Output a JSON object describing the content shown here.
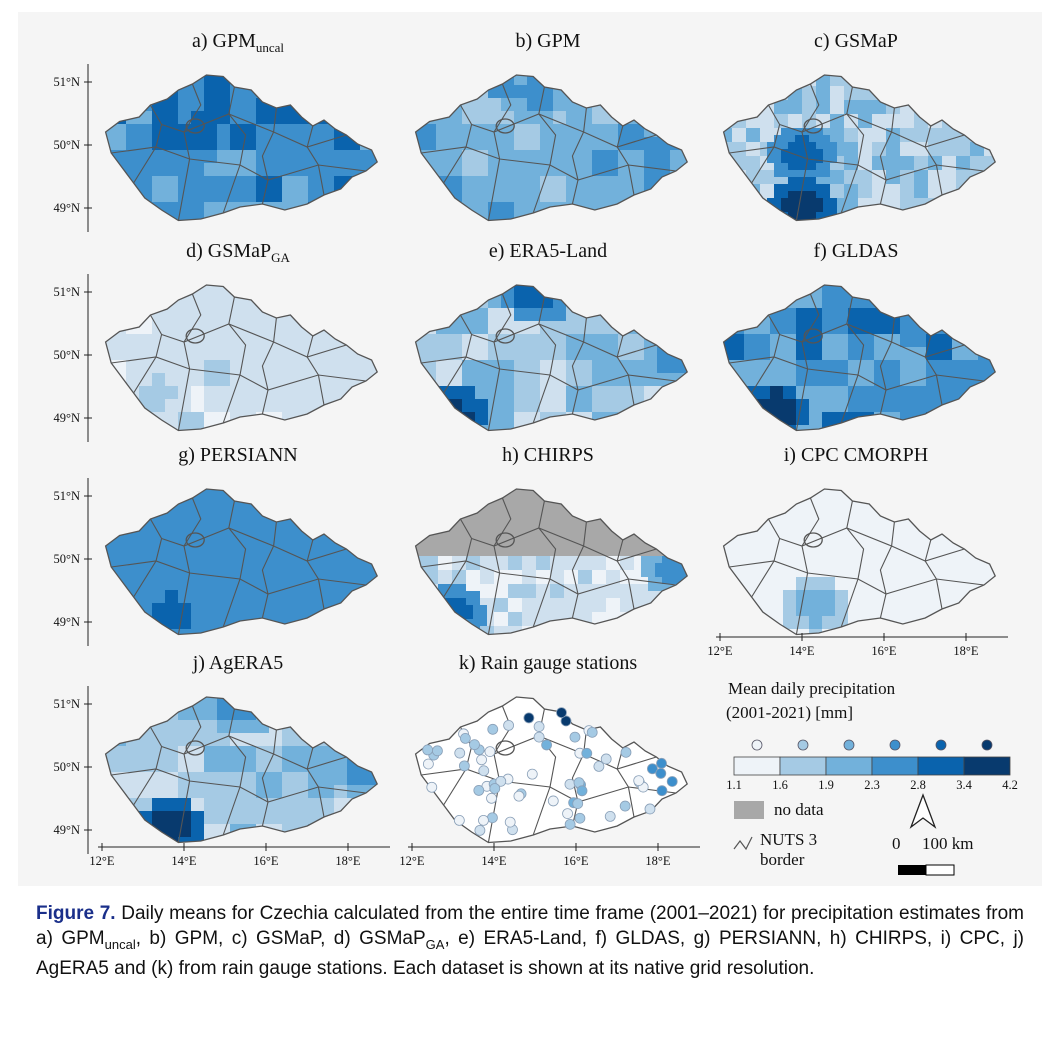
{
  "colors": {
    "bins": [
      "#eef3f8",
      "#cfe0ee",
      "#a5cae4",
      "#72b1db",
      "#3d8fcc",
      "#0a63ad",
      "#083a6e"
    ],
    "nodata": "#a8a8a8",
    "border": "#555555",
    "caption_label": "#1a2f8a"
  },
  "axes": {
    "lat_labels": [
      "51°N",
      "50°N",
      "49°N"
    ],
    "lon_labels": [
      "12°E",
      "14°E",
      "16°E",
      "18°E"
    ]
  },
  "panels": [
    {
      "id": "a",
      "title": "a) GPM",
      "sub": "uncal",
      "base": 4,
      "variance": 0.9,
      "hot": [
        [
          0.22,
          0.1,
          5
        ],
        [
          0.35,
          0.4,
          5
        ]
      ]
    },
    {
      "id": "b",
      "title": "b) GPM",
      "sub": "",
      "base": 3,
      "variance": 0.8,
      "hot": [
        [
          0.45,
          0.12,
          4
        ],
        [
          0.92,
          0.45,
          4
        ]
      ]
    },
    {
      "id": "c",
      "title": "c) GSMaP",
      "sub": "",
      "base": 2,
      "variance": 1.2,
      "hot": [
        [
          0.3,
          0.9,
          6
        ],
        [
          0.3,
          0.55,
          5
        ]
      ]
    },
    {
      "id": "d",
      "title": "d) GSMaP",
      "sub": "GA",
      "base": 1,
      "variance": 0.6,
      "hot": [
        [
          0.2,
          0.75,
          2
        ]
      ]
    },
    {
      "id": "e",
      "title": "e) ERA5-Land",
      "sub": "",
      "base": 2,
      "variance": 1.0,
      "hot": [
        [
          0.15,
          0.9,
          6
        ],
        [
          0.45,
          0.1,
          5
        ],
        [
          0.95,
          0.5,
          4
        ]
      ]
    },
    {
      "id": "f",
      "title": "f) GLDAS",
      "sub": "",
      "base": 4,
      "variance": 0.9,
      "hot": [
        [
          0.2,
          0.85,
          6
        ],
        [
          0.7,
          0.3,
          4
        ]
      ]
    },
    {
      "id": "g",
      "title": "g) PERSIANN",
      "sub": "",
      "base": 4,
      "variance": 0.5,
      "hot": [
        [
          0.25,
          0.85,
          5
        ]
      ]
    },
    {
      "id": "h",
      "title": "h) CHIRPS",
      "sub": "",
      "base": 1,
      "variance": 1.0,
      "hot": [
        [
          0.15,
          0.85,
          5
        ],
        [
          0.95,
          0.55,
          4
        ]
      ],
      "nodata_top": 0.45
    },
    {
      "id": "i",
      "title": "i) CPC CMORPH",
      "sub": "",
      "base": 0,
      "variance": 0.3,
      "hot": [
        [
          0.35,
          0.8,
          3
        ]
      ]
    },
    {
      "id": "j",
      "title": "j) AgERA5",
      "sub": "",
      "base": 2,
      "variance": 0.9,
      "hot": [
        [
          0.25,
          0.9,
          6
        ],
        [
          0.95,
          0.5,
          4
        ],
        [
          0.5,
          0.1,
          4
        ]
      ]
    },
    {
      "id": "k",
      "title": "k) Rain gauge stations",
      "sub": "",
      "stations": true
    }
  ],
  "legend": {
    "title_line1": "Mean daily precipitation",
    "title_line2": "(2001-2021) [mm]",
    "breaks": [
      "1.1",
      "1.6",
      "1.9",
      "2.3",
      "2.8",
      "3.4",
      "4.2"
    ],
    "nodata_label": "no data",
    "border_label_line1": "NUTS 3",
    "border_label_line2": "border",
    "scale_zero": "0",
    "scale_max": "100 km"
  },
  "caption": {
    "label": "Figure 7.",
    "text": "Daily means for Czechia calculated from the entire time frame (2001–2021) for precipitation estimates from a) GPMuncal, b) GPM, c) GSMaP, d) GSMaPGA, e) ERA5-Land, f) GLDAS, g) PERSIANN, h) CHIRPS, i) CPC, j) AgERA5 and (k) from rain gauge stations. Each dataset is shown at its native grid resolution."
  }
}
